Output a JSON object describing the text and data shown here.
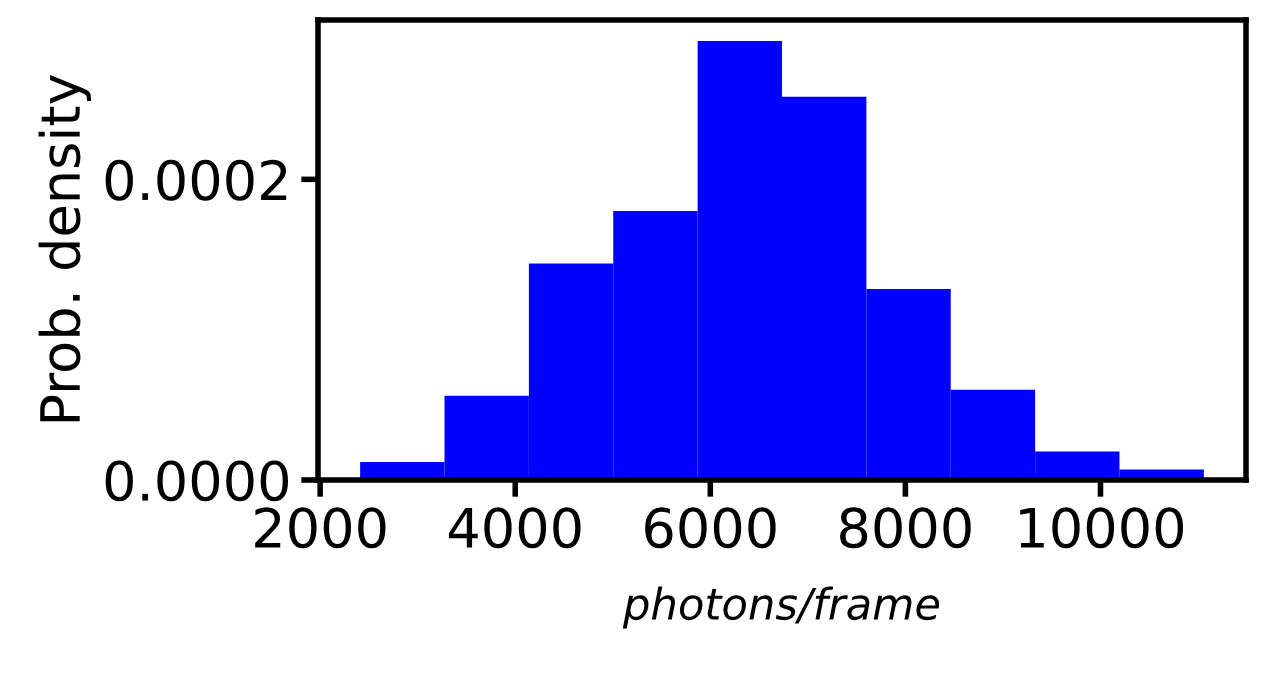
{
  "chart_data": {
    "type": "histogram",
    "xlabel": "photons/frame",
    "ylabel": "Prob. density",
    "bins": [
      2410,
      3275,
      4140,
      5005,
      5870,
      6735,
      7600,
      8465,
      9330,
      10195,
      11060
    ],
    "values": [
      1.2e-05,
      5.6e-05,
      0.000144,
      0.000179,
      0.000292,
      0.000255,
      0.000127,
      6e-05,
      1.9e-05,
      7e-06
    ],
    "color": "#0000ff",
    "xlim": [
      1978,
      11492
    ],
    "xticks": [
      2000,
      4000,
      6000,
      8000,
      10000
    ],
    "ylim": [
      0,
      0.000306
    ],
    "yticks": [
      {
        "value": 0,
        "label": "0.0000"
      },
      {
        "value": 0.0002,
        "label": "0.0002"
      }
    ],
    "grid": false
  }
}
